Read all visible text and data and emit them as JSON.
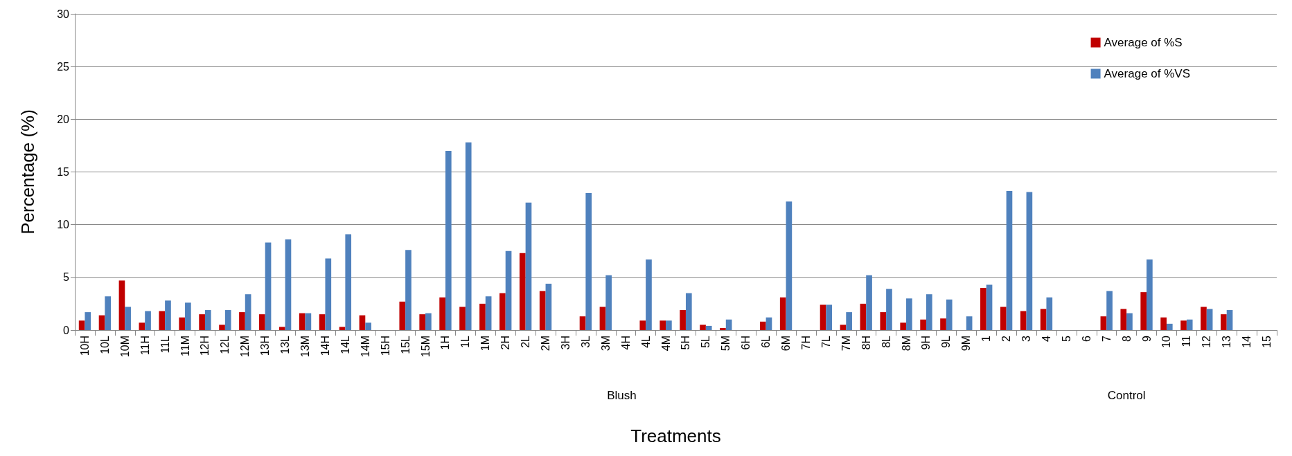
{
  "chart_data": {
    "type": "bar",
    "xlabel": "Treatments",
    "ylabel": "Percentage (%)",
    "categories": [
      "10H",
      "10L",
      "10M",
      "11H",
      "11L",
      "11M",
      "12H",
      "12L",
      "12M",
      "13H",
      "13L",
      "13M",
      "14H",
      "14L",
      "14M",
      "15H",
      "15L",
      "15M",
      "1H",
      "1L",
      "1M",
      "2H",
      "2L",
      "2M",
      "3H",
      "3L",
      "3M",
      "4H",
      "4L",
      "4M",
      "5H",
      "5L",
      "5M",
      "6H",
      "6L",
      "6M",
      "7H",
      "7L",
      "7M",
      "8H",
      "8L",
      "8M",
      "9H",
      "9L",
      "9M",
      "1",
      "2",
      "3",
      "4",
      "5",
      "6",
      "7",
      "8",
      "9",
      "10",
      "11",
      "12",
      "13",
      "14",
      "15"
    ],
    "series": [
      {
        "name": "Average of %S",
        "color": "#c00000",
        "values": [
          0.9,
          1.4,
          4.7,
          0.7,
          1.8,
          1.2,
          1.5,
          0.5,
          1.7,
          1.5,
          0.3,
          1.6,
          1.5,
          0.3,
          1.4,
          0,
          2.7,
          1.5,
          3.1,
          2.2,
          2.5,
          3.5,
          7.3,
          3.7,
          0,
          1.3,
          2.2,
          0,
          0.9,
          0.9,
          1.9,
          0.5,
          0.2,
          0,
          0.8,
          3.1,
          0,
          2.4,
          0.5,
          2.5,
          1.7,
          0.7,
          1.0,
          1.1,
          0,
          4.0,
          2.2,
          1.8,
          2.0,
          0,
          0,
          1.3,
          2.0,
          3.6,
          1.2,
          0.9,
          2.2,
          1.5,
          0,
          0
        ]
      },
      {
        "name": "Average of %VS",
        "color": "#4f81bd",
        "values": [
          1.7,
          3.2,
          2.2,
          1.8,
          2.8,
          2.6,
          1.9,
          1.9,
          3.4,
          8.3,
          8.6,
          1.6,
          6.8,
          9.1,
          0.7,
          0,
          7.6,
          1.6,
          17.0,
          17.8,
          3.2,
          7.5,
          12.1,
          4.4,
          0,
          13.0,
          5.2,
          0,
          6.7,
          0.9,
          3.5,
          0.4,
          1.0,
          0,
          1.2,
          12.2,
          0,
          2.4,
          1.7,
          5.2,
          3.9,
          3.0,
          3.4,
          2.9,
          1.3,
          4.3,
          13.2,
          13.1,
          3.1,
          0,
          0,
          3.7,
          1.6,
          6.7,
          0.6,
          1.0,
          2.0,
          1.9,
          0,
          0
        ]
      }
    ],
    "ylim": [
      0,
      30
    ],
    "yticks": [
      0,
      5,
      10,
      15,
      20,
      25,
      30
    ],
    "grid": "y",
    "legend": "top right",
    "annotations": [
      "Blush",
      "Control"
    ]
  }
}
